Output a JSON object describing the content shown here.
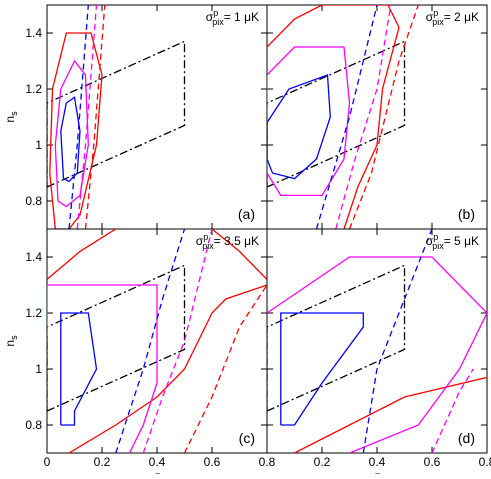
{
  "chart_data": [
    {
      "type": "line",
      "annotation": {
        "symbol": "σ",
        "sup": "p",
        "sub": "pix",
        "text": "= 1 μK"
      },
      "panel_label": "(a)",
      "ylabel": "n",
      "ylabel_sub": "s",
      "xlim": [
        0,
        0.8
      ],
      "ylim": [
        0.7,
        1.5
      ],
      "xticks": [
        0,
        0.2,
        0.4,
        0.6,
        0.8
      ],
      "yticks": [
        0.8,
        1,
        1.2,
        1.4
      ],
      "series": [
        {
          "color": "#000000",
          "style": "dashdot",
          "x": [
            0,
            0.5,
            0.5,
            0,
            0
          ],
          "y": [
            0.85,
            1.07,
            1.37,
            1.15,
            0.85
          ]
        },
        {
          "color": "#ff0000",
          "style": "solid",
          "x": [
            0.03,
            0.01,
            0.02,
            0.07,
            0.16,
            0.2,
            0.18,
            0.12,
            0.08,
            0.03
          ],
          "y": [
            0.7,
            0.9,
            1.2,
            1.4,
            1.4,
            1.25,
            1.0,
            0.75,
            0.7,
            0.7
          ]
        },
        {
          "color": "#ff00ff",
          "style": "solid",
          "x": [
            0.04,
            0.03,
            0.05,
            0.1,
            0.14,
            0.15,
            0.12,
            0.07,
            0.04
          ],
          "y": [
            0.8,
            1.0,
            1.2,
            1.3,
            1.25,
            1.0,
            0.82,
            0.78,
            0.8
          ]
        },
        {
          "color": "#0000ff",
          "style": "solid",
          "x": [
            0.06,
            0.05,
            0.07,
            0.1,
            0.12,
            0.11,
            0.08,
            0.06
          ],
          "y": [
            0.88,
            1.05,
            1.15,
            1.17,
            1.05,
            0.9,
            0.87,
            0.88
          ]
        },
        {
          "color": "#0000ff",
          "style": "dashed",
          "x": [
            0.08,
            0.11,
            0.13,
            0.15
          ],
          "y": [
            0.7,
            1.0,
            1.25,
            1.5
          ]
        },
        {
          "color": "#ff00ff",
          "style": "dashed",
          "x": [
            0.11,
            0.14,
            0.16,
            0.18
          ],
          "y": [
            0.7,
            1.0,
            1.25,
            1.5
          ]
        },
        {
          "color": "#ff0000",
          "style": "dashed",
          "x": [
            0.14,
            0.17,
            0.19,
            0.21
          ],
          "y": [
            0.7,
            1.0,
            1.25,
            1.5
          ]
        }
      ]
    },
    {
      "type": "line",
      "annotation": {
        "symbol": "σ",
        "sup": "p",
        "sub": "pix",
        "text": "= 2 μK"
      },
      "panel_label": "(b)",
      "xlim": [
        0,
        0.8
      ],
      "ylim": [
        0.7,
        1.5
      ],
      "xticks": [
        0,
        0.2,
        0.4,
        0.6,
        0.8
      ],
      "yticks": [
        0.8,
        1,
        1.2,
        1.4
      ],
      "series": [
        {
          "color": "#000000",
          "style": "dashdot",
          "x": [
            0,
            0.5,
            0.5,
            0,
            0
          ],
          "y": [
            0.85,
            1.07,
            1.37,
            1.15,
            0.85
          ]
        },
        {
          "color": "#ff0000",
          "style": "solid",
          "x": [
            0,
            0.1,
            0.2,
            0.44,
            0.48,
            0.42,
            0.4,
            0.33,
            0.28
          ],
          "y": [
            1.35,
            1.45,
            1.5,
            1.5,
            1.42,
            1.2,
            1.0,
            0.85,
            0.7
          ]
        },
        {
          "color": "#ff00ff",
          "style": "solid",
          "x": [
            0,
            0.1,
            0.28,
            0.3,
            0.28,
            0.2,
            0.05,
            0,
            0
          ],
          "y": [
            1.25,
            1.35,
            1.35,
            1.15,
            0.95,
            0.82,
            0.82,
            0.9,
            1.25
          ]
        },
        {
          "color": "#0000ff",
          "style": "solid",
          "x": [
            0,
            0.08,
            0.22,
            0.23,
            0.18,
            0.1,
            0.02,
            0,
            0
          ],
          "y": [
            1.08,
            1.2,
            1.25,
            1.1,
            0.95,
            0.88,
            0.9,
            0.95,
            1.08
          ]
        },
        {
          "color": "#0000ff",
          "style": "dashed",
          "x": [
            0.18,
            0.24,
            0.3,
            0.35,
            0.4
          ],
          "y": [
            0.7,
            0.9,
            1.1,
            1.3,
            1.5
          ]
        },
        {
          "color": "#ff00ff",
          "style": "dashed",
          "x": [
            0.25,
            0.32,
            0.4,
            0.45
          ],
          "y": [
            0.7,
            0.95,
            1.2,
            1.5
          ]
        },
        {
          "color": "#ff0000",
          "style": "dashed",
          "x": [
            0.3,
            0.38,
            0.48,
            0.55
          ],
          "y": [
            0.7,
            0.9,
            1.3,
            1.5
          ]
        }
      ]
    },
    {
      "type": "line",
      "annotation": {
        "symbol": "σ",
        "sup": "p",
        "sub": "pix",
        "text": "= 3.5 μK"
      },
      "panel_label": "(c)",
      "ylabel": "n",
      "ylabel_sub": "s",
      "xlabel": "τ",
      "xlim": [
        0,
        0.8
      ],
      "ylim": [
        0.7,
        1.5
      ],
      "xticks": [
        0,
        0.2,
        0.4,
        0.6,
        0.8
      ],
      "yticks": [
        0.8,
        1,
        1.2,
        1.4
      ],
      "series": [
        {
          "color": "#000000",
          "style": "dashdot",
          "x": [
            0,
            0.5,
            0.5,
            0,
            0
          ],
          "y": [
            0.85,
            1.07,
            1.37,
            1.15,
            0.85
          ]
        },
        {
          "color": "#ff0000",
          "style": "solid",
          "x": [
            0,
            0.12,
            0.25
          ],
          "y": [
            1.32,
            1.42,
            1.5
          ]
        },
        {
          "color": "#ff0000",
          "style": "solid",
          "x": [
            0.6,
            0.7,
            0.8
          ],
          "y": [
            1.5,
            1.42,
            1.32
          ]
        },
        {
          "color": "#ff0000",
          "style": "solid",
          "x": [
            0.08,
            0.25,
            0.4,
            0.5,
            0.55,
            0.6,
            0.65,
            0.8
          ],
          "y": [
            0.7,
            0.8,
            0.9,
            1.0,
            1.1,
            1.2,
            1.25,
            1.3
          ]
        },
        {
          "color": "#ff00ff",
          "style": "solid",
          "x": [
            0,
            0,
            0.4,
            0.4,
            0.35,
            0.3
          ],
          "y": [
            1.12,
            1.3,
            1.3,
            0.95,
            0.8,
            0.7
          ]
        },
        {
          "color": "#0000ff",
          "style": "solid",
          "x": [
            0.05,
            0.05,
            0.15,
            0.18,
            0.1,
            0.1,
            0.05
          ],
          "y": [
            0.8,
            1.2,
            1.2,
            1.0,
            0.85,
            0.8,
            0.8
          ]
        },
        {
          "color": "#0000ff",
          "style": "dashed",
          "x": [
            0.25,
            0.3,
            0.35,
            0.42,
            0.5
          ],
          "y": [
            0.7,
            0.85,
            1.0,
            1.25,
            1.5
          ]
        },
        {
          "color": "#ff00ff",
          "style": "dashed",
          "x": [
            0.35,
            0.42,
            0.5,
            0.55,
            0.6
          ],
          "y": [
            0.7,
            0.9,
            1.1,
            1.3,
            1.5
          ]
        },
        {
          "color": "#ff0000",
          "style": "dashed",
          "x": [
            0.5,
            0.6,
            0.7,
            0.8
          ],
          "y": [
            0.7,
            0.9,
            1.15,
            1.3
          ]
        }
      ]
    },
    {
      "type": "line",
      "annotation": {
        "symbol": "σ",
        "sup": "p",
        "sub": "pix",
        "text": "= 5 μK"
      },
      "panel_label": "(d)",
      "xlabel": "τ",
      "xlim": [
        0,
        0.8
      ],
      "ylim": [
        0.7,
        1.5
      ],
      "xticks": [
        0.2,
        0.4,
        0.6,
        0.8
      ],
      "yticks": [
        0.8,
        1,
        1.2,
        1.4
      ],
      "series": [
        {
          "color": "#000000",
          "style": "dashdot",
          "x": [
            0,
            0.5,
            0.5,
            0,
            0
          ],
          "y": [
            0.85,
            1.07,
            1.37,
            1.15,
            0.85
          ]
        },
        {
          "color": "#ff0000",
          "style": "solid",
          "x": [
            0.1,
            0.3,
            0.5,
            0.8
          ],
          "y": [
            0.7,
            0.8,
            0.9,
            0.97
          ]
        },
        {
          "color": "#ff00ff",
          "style": "solid",
          "x": [
            0,
            0.3,
            0.6,
            0.8,
            0.7,
            0.55,
            0.3
          ],
          "y": [
            1.2,
            1.4,
            1.4,
            1.2,
            1.0,
            0.8,
            0.7
          ]
        },
        {
          "color": "#0000ff",
          "style": "solid",
          "x": [
            0.05,
            0.05,
            0.35,
            0.35,
            0.2,
            0.1,
            0.05
          ],
          "y": [
            0.8,
            1.2,
            1.2,
            1.15,
            0.95,
            0.8,
            0.8
          ]
        },
        {
          "color": "#0000ff",
          "style": "dashed",
          "x": [
            0.35,
            0.4,
            0.5,
            0.6
          ],
          "y": [
            0.7,
            1.0,
            1.25,
            1.5
          ]
        },
        {
          "color": "#ff00ff",
          "style": "dashed",
          "x": [
            0.6,
            0.7,
            0.75
          ],
          "y": [
            0.7,
            0.92,
            1.0
          ]
        }
      ]
    }
  ]
}
